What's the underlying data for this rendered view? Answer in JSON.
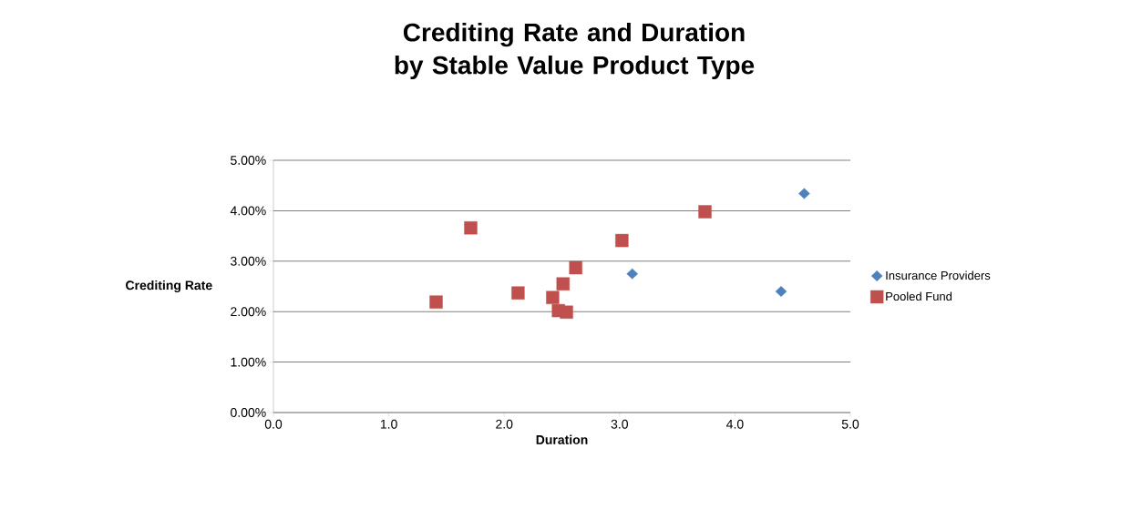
{
  "chart_data": {
    "type": "scatter",
    "title": "Crediting Rate and Duration by Stable Value Product Type",
    "xlabel": "Duration",
    "ylabel": "Crediting Rate",
    "xlim": [
      0,
      5
    ],
    "xticks": [
      {
        "value": 0,
        "label": "0.0"
      },
      {
        "value": 1,
        "label": "1.0"
      },
      {
        "value": 2,
        "label": "2.0"
      },
      {
        "value": 3,
        "label": "3.0"
      },
      {
        "value": 4,
        "label": "4.0"
      },
      {
        "value": 5,
        "label": "5.0"
      }
    ],
    "ylim": [
      0,
      5
    ],
    "yticks": [
      {
        "value": 0,
        "label": "0.00%"
      },
      {
        "value": 1,
        "label": "1.00%"
      },
      {
        "value": 2,
        "label": "2.00%"
      },
      {
        "value": 3,
        "label": "3.00%"
      },
      {
        "value": 4,
        "label": "4.00%"
      },
      {
        "value": 5,
        "label": "5.00%"
      }
    ],
    "grid": "y",
    "legend": "right",
    "series": [
      {
        "name": "Insurance Providers",
        "color": "#4f81bd",
        "marker": "diamond",
        "x": [
          4.6,
          3.11,
          4.4
        ],
        "values": [
          4.34,
          2.75,
          2.4
        ]
      },
      {
        "name": "Pooled Fund",
        "color": "#c0504d",
        "marker": "square",
        "x": [
          1.71,
          1.41,
          2.12,
          3.02,
          2.62,
          2.51,
          2.42,
          2.47,
          2.54,
          3.74
        ],
        "values": [
          3.66,
          2.19,
          2.37,
          3.41,
          2.87,
          2.55,
          2.28,
          2.02,
          1.99,
          3.98
        ]
      }
    ]
  }
}
